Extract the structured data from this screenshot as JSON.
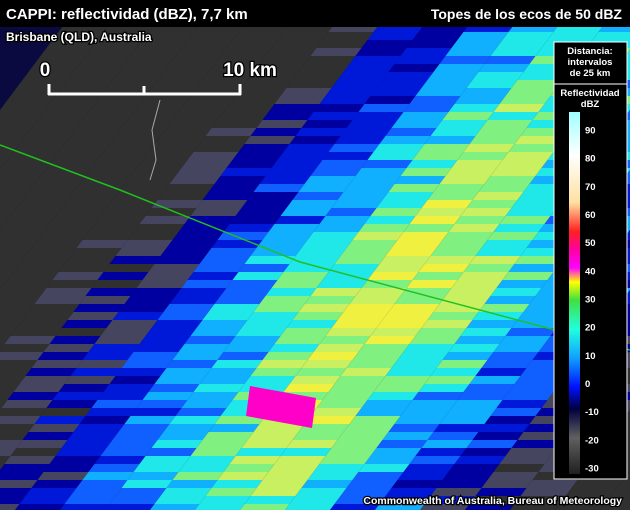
{
  "header": {
    "title": "CAPPI: reflectividad (dBZ), 7,7 km",
    "right": "Topes de los ecos de 50 dBZ"
  },
  "location": "Brisbane (QLD), Australia",
  "scale_bar": {
    "start": "0",
    "end": "10 km"
  },
  "legend": {
    "distance_title": [
      "Distancia:",
      "intervalos",
      "de 25 km"
    ],
    "scale_title": [
      "Reflectividad",
      "dBZ"
    ],
    "ticks": [
      90,
      80,
      70,
      60,
      50,
      40,
      30,
      20,
      10,
      0,
      -10,
      -20,
      -30
    ]
  },
  "credit": "Commonwealth of Australia, Bureau of Meteorology"
}
